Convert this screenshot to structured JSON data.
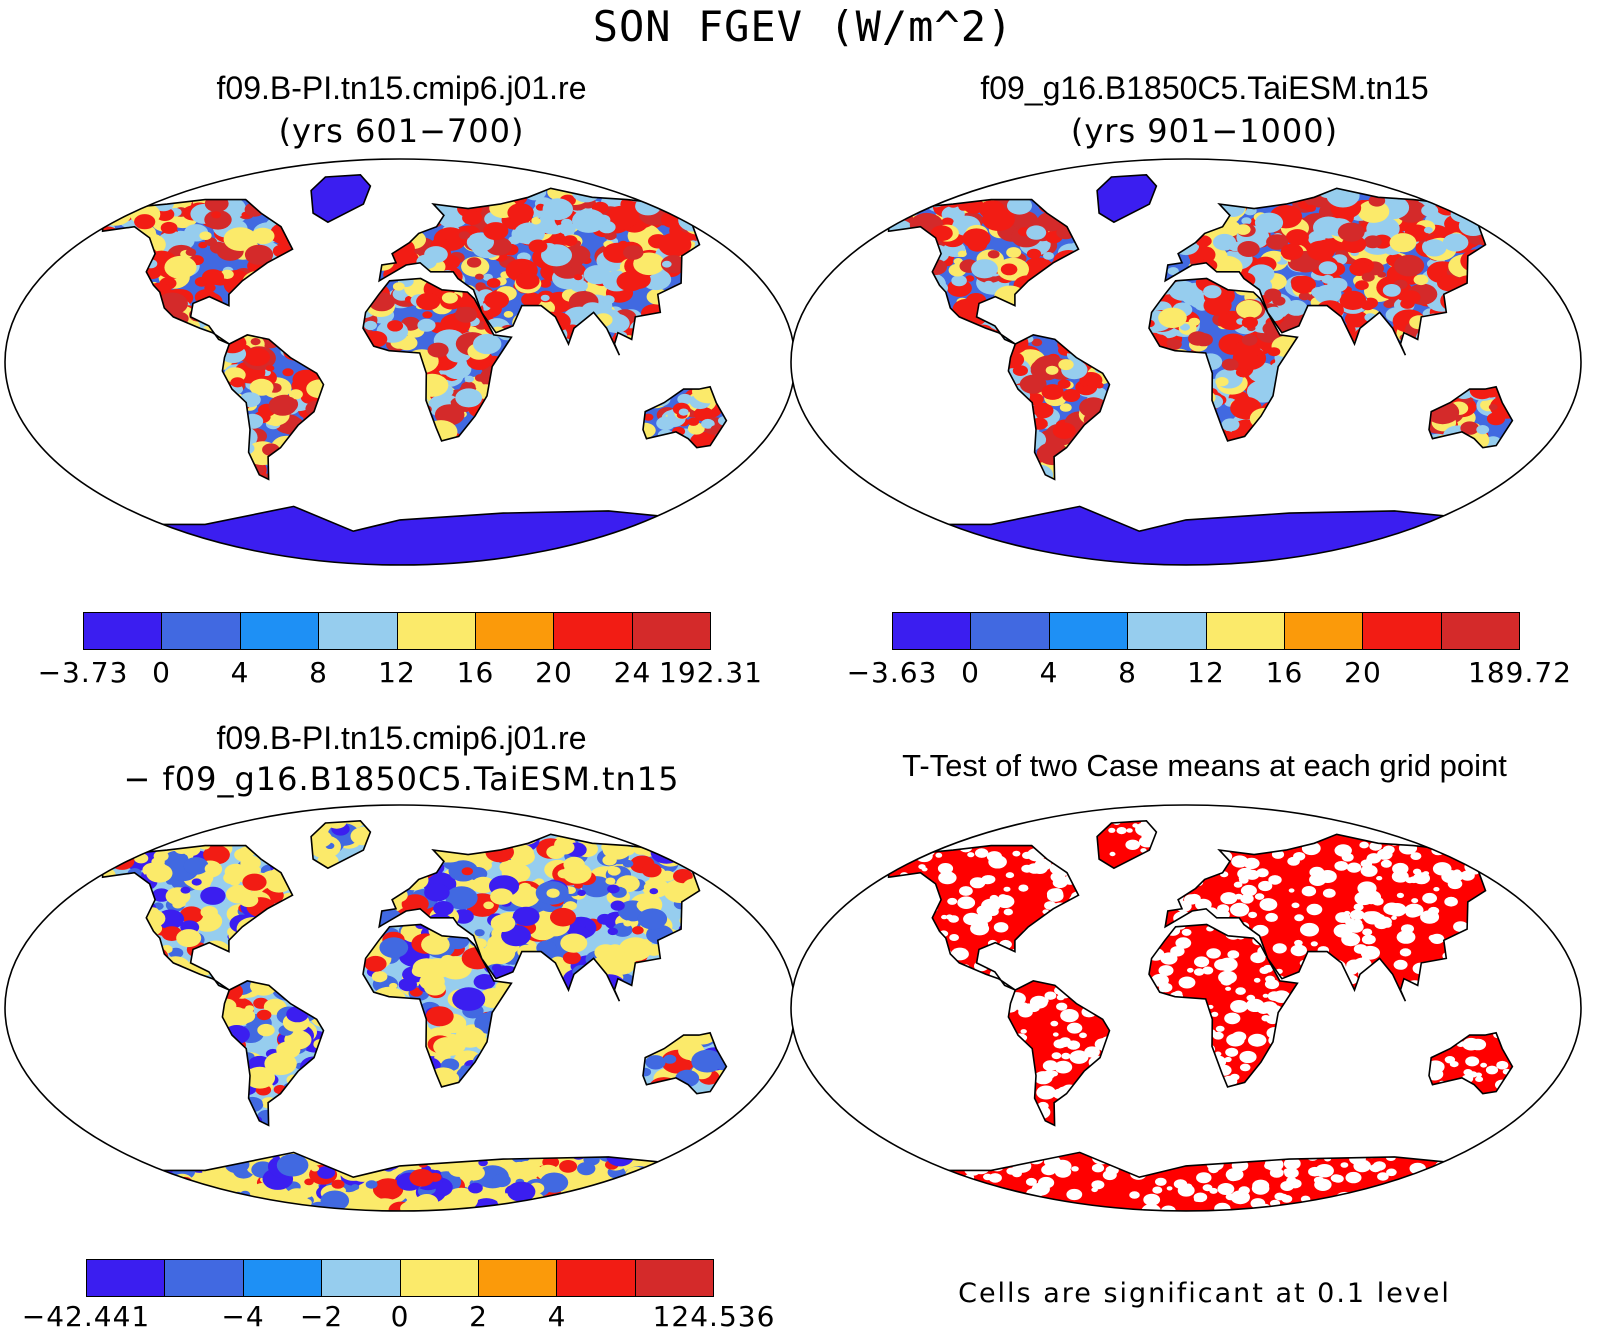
{
  "title": "SON FGEV (W/m^2)",
  "panels": [
    {
      "case": "f09.B-PI.tn15.cmip6.j01.re",
      "subtitle": "(yrs 601−700)",
      "colorbar": {
        "colors": [
          "#3b1ef0",
          "#4169e1",
          "#1e90f5",
          "#96cdee",
          "#fbea6a",
          "#fb9a0a",
          "#f21c14",
          "#d42a2a"
        ],
        "labels": [
          "−3.73",
          "0",
          "4",
          "8",
          "12",
          "16",
          "20",
          "24",
          "192.31"
        ]
      }
    },
    {
      "case": "f09_g16.B1850C5.TaiESM.tn15",
      "subtitle": "(yrs 901−1000)",
      "colorbar": {
        "colors": [
          "#3b1ef0",
          "#4169e1",
          "#1e90f5",
          "#96cdee",
          "#fbea6a",
          "#fb9a0a",
          "#f21c14",
          "#d42a2a"
        ],
        "labels": [
          "−3.63",
          "0",
          "4",
          "8",
          "12",
          "16",
          "20",
          "",
          "189.72"
        ]
      }
    },
    {
      "case": "f09.B-PI.tn15.cmip6.j01.re",
      "subtitle": "− f09_g16.B1850C5.TaiESM.tn15",
      "colorbar": {
        "colors": [
          "#3b1ef0",
          "#4169e1",
          "#1e90f5",
          "#96cdee",
          "#fbea6a",
          "#fb9a0a",
          "#f21c14",
          "#d42a2a"
        ],
        "labels": [
          "−42.441",
          "",
          "−4",
          "−2",
          "0",
          "2",
          "4",
          "",
          "124.536"
        ]
      }
    },
    {
      "case": "T-Test of two Case means at each grid point",
      "note": "Cells are significant at 0.1 level",
      "sig_color": "#ff0000"
    }
  ]
}
